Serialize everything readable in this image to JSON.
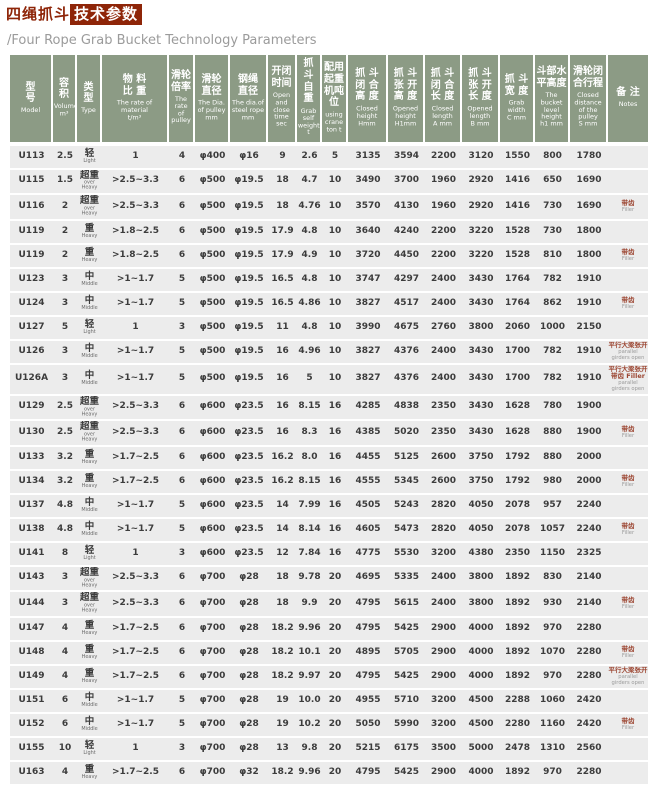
{
  "header": {
    "title_zh": "四绳抓斗",
    "title_badge_zh": "技术参数",
    "subtitle_en": "/Four Rope Grab Bucket Technology Parameters"
  },
  "colors": {
    "accent_red": "#8e2508",
    "header_green": "#8c9b85",
    "row_grey": "#ececec"
  },
  "table": {
    "columns": [
      {
        "key": "model",
        "zh": "型\n号",
        "en": "Model"
      },
      {
        "key": "volume",
        "zh": "容\n积",
        "en": "Volume\nm³"
      },
      {
        "key": "type",
        "zh": "类\n型",
        "en": "Type"
      },
      {
        "key": "material",
        "zh": "物 料\n比 重",
        "en": "The rate of material\nt/m³"
      },
      {
        "key": "pulley_rate",
        "zh": "滑轮\n倍率",
        "en": "The rate\nof\npulley"
      },
      {
        "key": "pulley_dia",
        "zh": "滑轮\n直径",
        "en": "The Dia.\nof pulley\nmm"
      },
      {
        "key": "rope_dia",
        "zh": "钢绳\n直径",
        "en": "The dia.of\nsteel rope\nmm"
      },
      {
        "key": "oc_time",
        "zh": "开闭\n时间",
        "en": "Open and\nclose time\nsec"
      },
      {
        "key": "self_weight",
        "zh": "抓 斗\n自 重",
        "en": "Grab self\nweight\nt"
      },
      {
        "key": "crane_ton",
        "zh": "配用\n起重\n机吨\n位",
        "en": "using crane\nton  t"
      },
      {
        "key": "closed_h",
        "zh": "抓 斗\n闭 合\n高 度",
        "en": "Closed\nheight\nHmm"
      },
      {
        "key": "opened_h",
        "zh": "抓 斗\n张 开\n高 度",
        "en": "Opened\nheight\nH1mm"
      },
      {
        "key": "closed_l",
        "zh": "抓 斗\n闭 合\n长 度",
        "en": "Closed\nlength\nA mm"
      },
      {
        "key": "opened_l",
        "zh": "抓 斗\n张 开\n长 度",
        "en": "Opened\nlength\nB mm"
      },
      {
        "key": "grab_w",
        "zh": "抓 斗\n宽 度",
        "en": "Grab\nwidth\nC mm"
      },
      {
        "key": "level_h",
        "zh": "斗部水\n平高度",
        "en": "The\nbucket\nlevel\nheight\nh1 mm"
      },
      {
        "key": "pulley_stroke",
        "zh": "滑轮闭\n合行程",
        "en": "Closed\ndistance\nof the\npulley\nS mm"
      },
      {
        "key": "notes",
        "zh": "备 注",
        "en": "Notes"
      }
    ],
    "rows": [
      {
        "model": "U113",
        "volume": "2.5",
        "type_zh": "轻",
        "type_en": "Light",
        "material": "1",
        "pulley_rate": "4",
        "pulley_dia": "φ400",
        "rope_dia": "φ16",
        "oc_time": "9",
        "self_weight": "2.6",
        "crane_ton": "5",
        "closed_h": "3135",
        "opened_h": "3594",
        "closed_l": "2200",
        "opened_l": "3120",
        "grab_w": "1550",
        "level_h": "800",
        "pulley_stroke": "1780",
        "notes": []
      },
      {
        "model": "U115",
        "volume": "1.5",
        "type_zh": "超重",
        "type_en": "over Heavy",
        "material": ">2.5~3.3",
        "pulley_rate": "6",
        "pulley_dia": "φ500",
        "rope_dia": "φ19.5",
        "oc_time": "18",
        "self_weight": "4.7",
        "crane_ton": "10",
        "closed_h": "3490",
        "opened_h": "3700",
        "closed_l": "1960",
        "opened_l": "2920",
        "grab_w": "1416",
        "level_h": "650",
        "pulley_stroke": "1690",
        "notes": []
      },
      {
        "model": "U116",
        "volume": "2",
        "type_zh": "超重",
        "type_en": "over Heavy",
        "material": ">2.5~3.3",
        "pulley_rate": "6",
        "pulley_dia": "φ500",
        "rope_dia": "φ19.5",
        "oc_time": "18",
        "self_weight": "4.76",
        "crane_ton": "10",
        "closed_h": "3570",
        "opened_h": "4130",
        "closed_l": "1960",
        "opened_l": "2920",
        "grab_w": "1416",
        "level_h": "730",
        "pulley_stroke": "1690",
        "notes": [
          {
            "text": "带齿",
            "lang": "zh"
          },
          {
            "text": "Filler",
            "lang": "en"
          }
        ]
      },
      {
        "model": "U119",
        "volume": "2",
        "type_zh": "重",
        "type_en": "Heavy",
        "material": ">1.8~2.5",
        "pulley_rate": "6",
        "pulley_dia": "φ500",
        "rope_dia": "φ19.5",
        "oc_time": "17.9",
        "self_weight": "4.8",
        "crane_ton": "10",
        "closed_h": "3640",
        "opened_h": "4240",
        "closed_l": "2200",
        "opened_l": "3220",
        "grab_w": "1528",
        "level_h": "730",
        "pulley_stroke": "1800",
        "notes": []
      },
      {
        "model": "U119",
        "volume": "2",
        "type_zh": "重",
        "type_en": "Heavy",
        "material": ">1.8~2.5",
        "pulley_rate": "6",
        "pulley_dia": "φ500",
        "rope_dia": "φ19.5",
        "oc_time": "17.9",
        "self_weight": "4.9",
        "crane_ton": "10",
        "closed_h": "3720",
        "opened_h": "4450",
        "closed_l": "2200",
        "opened_l": "3220",
        "grab_w": "1528",
        "level_h": "810",
        "pulley_stroke": "1800",
        "notes": [
          {
            "text": "带齿",
            "lang": "zh"
          },
          {
            "text": "Filler",
            "lang": "en"
          }
        ]
      },
      {
        "model": "U123",
        "volume": "3",
        "type_zh": "中",
        "type_en": "Middle",
        "material": ">1~1.7",
        "pulley_rate": "5",
        "pulley_dia": "φ500",
        "rope_dia": "φ19.5",
        "oc_time": "16.5",
        "self_weight": "4.8",
        "crane_ton": "10",
        "closed_h": "3747",
        "opened_h": "4297",
        "closed_l": "2400",
        "opened_l": "3430",
        "grab_w": "1764",
        "level_h": "782",
        "pulley_stroke": "1910",
        "notes": []
      },
      {
        "model": "U124",
        "volume": "3",
        "type_zh": "中",
        "type_en": "Middle",
        "material": ">1~1.7",
        "pulley_rate": "5",
        "pulley_dia": "φ500",
        "rope_dia": "φ19.5",
        "oc_time": "16.5",
        "self_weight": "4.86",
        "crane_ton": "10",
        "closed_h": "3827",
        "opened_h": "4517",
        "closed_l": "2400",
        "opened_l": "3430",
        "grab_w": "1764",
        "level_h": "862",
        "pulley_stroke": "1910",
        "notes": [
          {
            "text": "带齿",
            "lang": "zh"
          },
          {
            "text": "Filler",
            "lang": "en"
          }
        ]
      },
      {
        "model": "U127",
        "volume": "5",
        "type_zh": "轻",
        "type_en": "Light",
        "material": "1",
        "pulley_rate": "3",
        "pulley_dia": "φ500",
        "rope_dia": "φ19.5",
        "oc_time": "11",
        "self_weight": "4.8",
        "crane_ton": "10",
        "closed_h": "3990",
        "opened_h": "4675",
        "closed_l": "2760",
        "opened_l": "3800",
        "grab_w": "2060",
        "level_h": "1000",
        "pulley_stroke": "2150",
        "notes": []
      },
      {
        "model": "U126",
        "volume": "3",
        "type_zh": "中",
        "type_en": "Middle",
        "material": ">1~1.7",
        "pulley_rate": "5",
        "pulley_dia": "φ500",
        "rope_dia": "φ19.5",
        "oc_time": "16",
        "self_weight": "4.96",
        "crane_ton": "10",
        "closed_h": "3827",
        "opened_h": "4376",
        "closed_l": "2400",
        "opened_l": "3430",
        "grab_w": "1700",
        "level_h": "782",
        "pulley_stroke": "1910",
        "notes": [
          {
            "text": "平行大梁张开",
            "lang": "zh"
          },
          {
            "text": "parallel girders open",
            "lang": "en"
          }
        ]
      },
      {
        "model": "U126A",
        "volume": "3",
        "type_zh": "中",
        "type_en": "Middle",
        "material": ">1~1.7",
        "pulley_rate": "5",
        "pulley_dia": "φ500",
        "rope_dia": "φ19.5",
        "oc_time": "16",
        "self_weight": "5",
        "crane_ton": "10",
        "closed_h": "3827",
        "opened_h": "4376",
        "closed_l": "2400",
        "opened_l": "3430",
        "grab_w": "1700",
        "level_h": "782",
        "pulley_stroke": "1910",
        "notes": [
          {
            "text": "平行大梁张开",
            "lang": "zh"
          },
          {
            "text": "带齿 Filler",
            "lang": "zh"
          },
          {
            "text": "parallel girders open",
            "lang": "en"
          }
        ]
      },
      {
        "model": "U129",
        "volume": "2.5",
        "type_zh": "超重",
        "type_en": "over Heavy",
        "material": ">2.5~3.3",
        "pulley_rate": "6",
        "pulley_dia": "φ600",
        "rope_dia": "φ23.5",
        "oc_time": "16",
        "self_weight": "8.15",
        "crane_ton": "16",
        "closed_h": "4285",
        "opened_h": "4838",
        "closed_l": "2350",
        "opened_l": "3430",
        "grab_w": "1628",
        "level_h": "780",
        "pulley_stroke": "1900",
        "notes": []
      },
      {
        "model": "U130",
        "volume": "2.5",
        "type_zh": "超重",
        "type_en": "over Heavy",
        "material": ">2.5~3.3",
        "pulley_rate": "6",
        "pulley_dia": "φ600",
        "rope_dia": "φ23.5",
        "oc_time": "16",
        "self_weight": "8.3",
        "crane_ton": "16",
        "closed_h": "4385",
        "opened_h": "5020",
        "closed_l": "2350",
        "opened_l": "3430",
        "grab_w": "1628",
        "level_h": "880",
        "pulley_stroke": "1900",
        "notes": [
          {
            "text": "带齿",
            "lang": "zh"
          },
          {
            "text": "Filler",
            "lang": "en"
          }
        ]
      },
      {
        "model": "U133",
        "volume": "3.2",
        "type_zh": "重",
        "type_en": "Heavy",
        "material": ">1.7~2.5",
        "pulley_rate": "6",
        "pulley_dia": "φ600",
        "rope_dia": "φ23.5",
        "oc_time": "16.2",
        "self_weight": "8.0",
        "crane_ton": "16",
        "closed_h": "4455",
        "opened_h": "5125",
        "closed_l": "2600",
        "opened_l": "3750",
        "grab_w": "1792",
        "level_h": "880",
        "pulley_stroke": "2000",
        "notes": []
      },
      {
        "model": "U134",
        "volume": "3.2",
        "type_zh": "重",
        "type_en": "Heavy",
        "material": ">1.7~2.5",
        "pulley_rate": "6",
        "pulley_dia": "φ600",
        "rope_dia": "φ23.5",
        "oc_time": "16.2",
        "self_weight": "8.15",
        "crane_ton": "16",
        "closed_h": "4555",
        "opened_h": "5345",
        "closed_l": "2600",
        "opened_l": "3750",
        "grab_w": "1792",
        "level_h": "980",
        "pulley_stroke": "2000",
        "notes": [
          {
            "text": "带齿",
            "lang": "zh"
          },
          {
            "text": "Filler",
            "lang": "en"
          }
        ]
      },
      {
        "model": "U137",
        "volume": "4.8",
        "type_zh": "中",
        "type_en": "Middle",
        "material": ">1~1.7",
        "pulley_rate": "5",
        "pulley_dia": "φ600",
        "rope_dia": "φ23.5",
        "oc_time": "14",
        "self_weight": "7.99",
        "crane_ton": "16",
        "closed_h": "4505",
        "opened_h": "5243",
        "closed_l": "2820",
        "opened_l": "4050",
        "grab_w": "2078",
        "level_h": "957",
        "pulley_stroke": "2240",
        "notes": []
      },
      {
        "model": "U138",
        "volume": "4.8",
        "type_zh": "中",
        "type_en": "Middle",
        "material": ">1~1.7",
        "pulley_rate": "5",
        "pulley_dia": "φ600",
        "rope_dia": "φ23.5",
        "oc_time": "14",
        "self_weight": "8.14",
        "crane_ton": "16",
        "closed_h": "4605",
        "opened_h": "5473",
        "closed_l": "2820",
        "opened_l": "4050",
        "grab_w": "2078",
        "level_h": "1057",
        "pulley_stroke": "2240",
        "notes": [
          {
            "text": "带齿",
            "lang": "zh"
          },
          {
            "text": "Filler",
            "lang": "en"
          }
        ]
      },
      {
        "model": "U141",
        "volume": "8",
        "type_zh": "轻",
        "type_en": "Light",
        "material": "1",
        "pulley_rate": "3",
        "pulley_dia": "φ600",
        "rope_dia": "φ23.5",
        "oc_time": "12",
        "self_weight": "7.84",
        "crane_ton": "16",
        "closed_h": "4775",
        "opened_h": "5530",
        "closed_l": "3200",
        "opened_l": "4380",
        "grab_w": "2350",
        "level_h": "1150",
        "pulley_stroke": "2325",
        "notes": []
      },
      {
        "model": "U143",
        "volume": "3",
        "type_zh": "超重",
        "type_en": "over Heavy",
        "material": ">2.5~3.3",
        "pulley_rate": "6",
        "pulley_dia": "φ700",
        "rope_dia": "φ28",
        "oc_time": "18",
        "self_weight": "9.78",
        "crane_ton": "20",
        "closed_h": "4695",
        "opened_h": "5335",
        "closed_l": "2400",
        "opened_l": "3800",
        "grab_w": "1892",
        "level_h": "830",
        "pulley_stroke": "2140",
        "notes": []
      },
      {
        "model": "U144",
        "volume": "3",
        "type_zh": "超重",
        "type_en": "over Heavy",
        "material": ">2.5~3.3",
        "pulley_rate": "6",
        "pulley_dia": "φ700",
        "rope_dia": "φ28",
        "oc_time": "18",
        "self_weight": "9.9",
        "crane_ton": "20",
        "closed_h": "4795",
        "opened_h": "5615",
        "closed_l": "2400",
        "opened_l": "3800",
        "grab_w": "1892",
        "level_h": "930",
        "pulley_stroke": "2140",
        "notes": [
          {
            "text": "带齿",
            "lang": "zh"
          },
          {
            "text": "Filler",
            "lang": "en"
          }
        ]
      },
      {
        "model": "U147",
        "volume": "4",
        "type_zh": "重",
        "type_en": "Heavy",
        "material": ">1.7~2.5",
        "pulley_rate": "6",
        "pulley_dia": "φ700",
        "rope_dia": "φ28",
        "oc_time": "18.2",
        "self_weight": "9.96",
        "crane_ton": "20",
        "closed_h": "4795",
        "opened_h": "5425",
        "closed_l": "2900",
        "opened_l": "4000",
        "grab_w": "1892",
        "level_h": "970",
        "pulley_stroke": "2280",
        "notes": []
      },
      {
        "model": "U148",
        "volume": "4",
        "type_zh": "重",
        "type_en": "Heavy",
        "material": ">1.7~2.5",
        "pulley_rate": "6",
        "pulley_dia": "φ700",
        "rope_dia": "φ28",
        "oc_time": "18.2",
        "self_weight": "10.1",
        "crane_ton": "20",
        "closed_h": "4895",
        "opened_h": "5705",
        "closed_l": "2900",
        "opened_l": "4000",
        "grab_w": "1892",
        "level_h": "1070",
        "pulley_stroke": "2280",
        "notes": [
          {
            "text": "带齿",
            "lang": "zh"
          },
          {
            "text": "Filler",
            "lang": "en"
          }
        ]
      },
      {
        "model": "U149",
        "volume": "4",
        "type_zh": "重",
        "type_en": "Heavy",
        "material": ">1.7~2.5",
        "pulley_rate": "6",
        "pulley_dia": "φ700",
        "rope_dia": "φ28",
        "oc_time": "18.2",
        "self_weight": "9.97",
        "crane_ton": "20",
        "closed_h": "4795",
        "opened_h": "5425",
        "closed_l": "2900",
        "opened_l": "4000",
        "grab_w": "1892",
        "level_h": "970",
        "pulley_stroke": "2280",
        "notes": [
          {
            "text": "平行大梁张开",
            "lang": "zh"
          },
          {
            "text": "parallel girders open",
            "lang": "en"
          }
        ]
      },
      {
        "model": "U151",
        "volume": "6",
        "type_zh": "中",
        "type_en": "Middle",
        "material": ">1~1.7",
        "pulley_rate": "5",
        "pulley_dia": "φ700",
        "rope_dia": "φ28",
        "oc_time": "19",
        "self_weight": "10.0",
        "crane_ton": "20",
        "closed_h": "4955",
        "opened_h": "5710",
        "closed_l": "3200",
        "opened_l": "4500",
        "grab_w": "2288",
        "level_h": "1060",
        "pulley_stroke": "2420",
        "notes": []
      },
      {
        "model": "U152",
        "volume": "6",
        "type_zh": "中",
        "type_en": "Middle",
        "material": ">1~1.7",
        "pulley_rate": "5",
        "pulley_dia": "φ700",
        "rope_dia": "φ28",
        "oc_time": "19",
        "self_weight": "10.2",
        "crane_ton": "20",
        "closed_h": "5050",
        "opened_h": "5990",
        "closed_l": "3200",
        "opened_l": "4500",
        "grab_w": "2280",
        "level_h": "1160",
        "pulley_stroke": "2420",
        "notes": [
          {
            "text": "带齿",
            "lang": "zh"
          },
          {
            "text": "Filler",
            "lang": "en"
          }
        ]
      },
      {
        "model": "U155",
        "volume": "10",
        "type_zh": "轻",
        "type_en": "Light",
        "material": "1",
        "pulley_rate": "3",
        "pulley_dia": "φ700",
        "rope_dia": "φ28",
        "oc_time": "13",
        "self_weight": "9.8",
        "crane_ton": "20",
        "closed_h": "5215",
        "opened_h": "6175",
        "closed_l": "3500",
        "opened_l": "5000",
        "grab_w": "2478",
        "level_h": "1310",
        "pulley_stroke": "2560",
        "notes": []
      },
      {
        "model": "U163",
        "volume": "4",
        "type_zh": "重",
        "type_en": "Heavy",
        "material": ">1.7~2.5",
        "pulley_rate": "6",
        "pulley_dia": "φ700",
        "rope_dia": "φ32",
        "oc_time": "18.2",
        "self_weight": "9.96",
        "crane_ton": "20",
        "closed_h": "4795",
        "opened_h": "5425",
        "closed_l": "2900",
        "opened_l": "4000",
        "grab_w": "1892",
        "level_h": "970",
        "pulley_stroke": "2280",
        "notes": []
      }
    ]
  }
}
